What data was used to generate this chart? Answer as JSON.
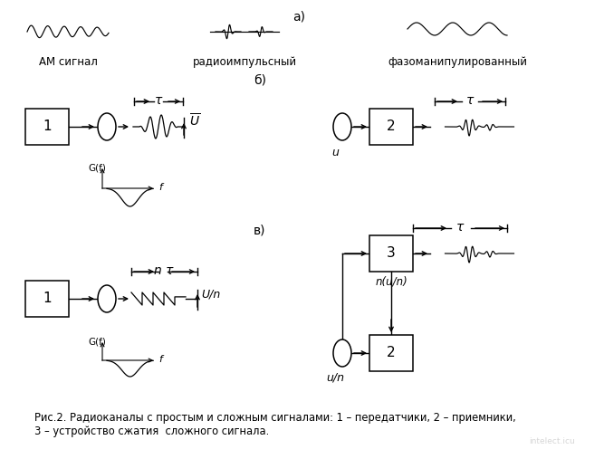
{
  "bg_color": "#ffffff",
  "title_a": "а)",
  "title_b": "б)",
  "title_v": "в)",
  "label_am": "АМ сигнал",
  "label_radio": "радиоимпульсный",
  "label_phase": "фазоманипулированный",
  "caption": "Рис.2. Радиоканалы с простым и сложным сигналами: 1 – передатчики, 2 – приемники,\n3 – устройство сжатия  сложного сигнала.",
  "text_color": "#000000"
}
